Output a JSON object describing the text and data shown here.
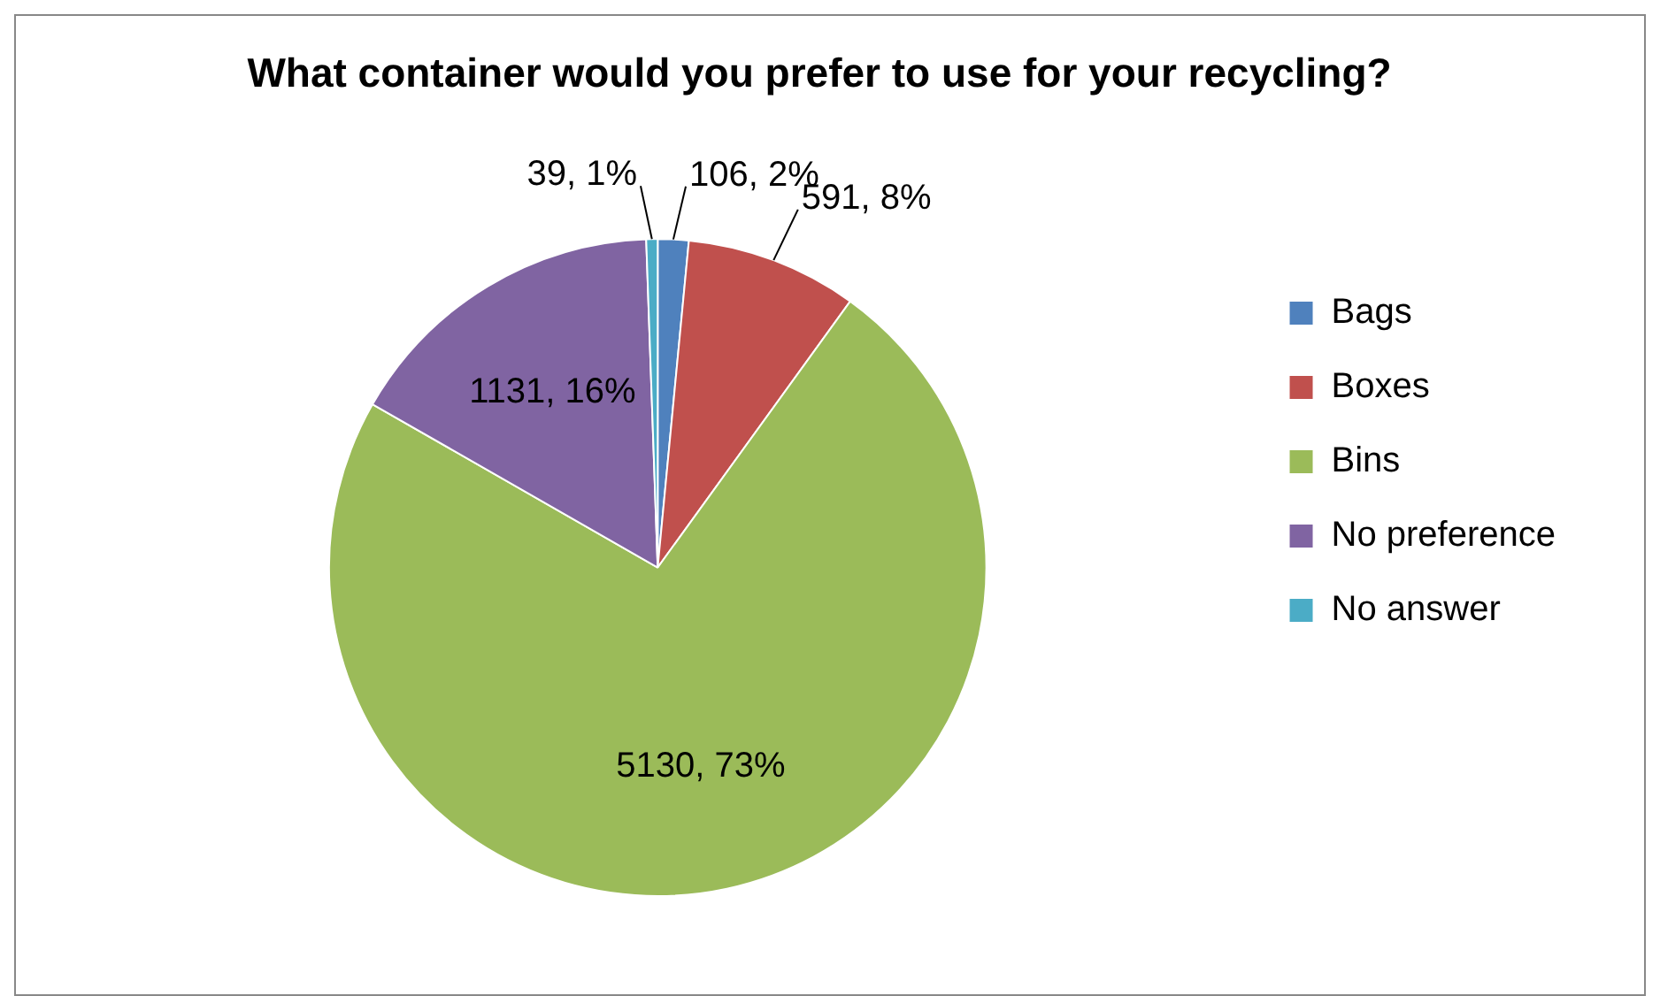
{
  "chart_data": {
    "type": "pie",
    "title": "What container would you prefer to use for your recycling?",
    "categories": [
      "Bags",
      "Boxes",
      "Bins",
      "No preference",
      "No answer"
    ],
    "values": [
      106,
      591,
      5130,
      1131,
      39
    ],
    "value_labels": [
      "106, 2%",
      "591, 8%",
      "5130, 73%",
      "1131, 16%",
      "39, 1%"
    ],
    "colors": [
      "#4f81bd",
      "#c0504d",
      "#9bbb59",
      "#8064a2",
      "#4bacc6"
    ],
    "legend": "right"
  }
}
